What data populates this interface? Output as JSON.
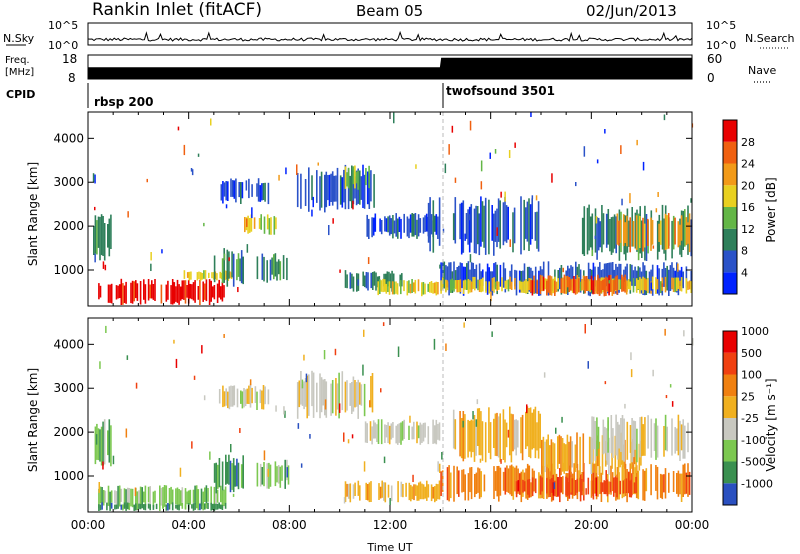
{
  "header": {
    "station": "Rankin Inlet (fitACF)",
    "beam": "Beam 05",
    "date": "02/Jun/2013"
  },
  "strips": {
    "nsky": {
      "label": "N.Sky",
      "top": "10^5",
      "bottom": "10^0"
    },
    "nsearch": {
      "label": "N.Search",
      "top": "10^5",
      "bottom": "10^0"
    },
    "freq": {
      "label_line1": "Freq.",
      "label_line2": "[MHz]",
      "top": "18",
      "bottom": "8"
    },
    "nave": {
      "label": "Nave",
      "top": "60",
      "bottom": "0"
    },
    "cpid": {
      "label": "CPID"
    }
  },
  "colors": {
    "power": [
      "#0022ff",
      "#2a52c8",
      "#2e7f5a",
      "#63b646",
      "#e8d020",
      "#f29a18",
      "#f06010",
      "#e80000"
    ],
    "velocity": [
      "#e80000",
      "#f04010",
      "#f08010",
      "#f0b020",
      "#c8c8c0",
      "#7cc850",
      "#3a9050",
      "#2a50c0"
    ]
  },
  "chart_data": [
    {
      "type": "line",
      "name": "N.Sky",
      "xlim": [
        0,
        24
      ],
      "scale": "log",
      "ylim": [
        1,
        100000
      ],
      "ylabel": "N.Sky",
      "y2label": "N.Search"
    },
    {
      "type": "line",
      "name": "Freq / Nave",
      "xlim": [
        0,
        24
      ],
      "ylim": [
        8,
        18
      ],
      "ylabel": "Freq. [MHz]",
      "y2lim": [
        0,
        60
      ],
      "y2label": "Nave",
      "freq_series": [
        {
          "x": 0,
          "y": 12.4
        },
        {
          "x": 14,
          "y": 12.4
        }
      ],
      "nave_series": [
        {
          "x": 0,
          "y": 28
        },
        {
          "x": 14,
          "y": 28
        },
        {
          "x": 14.05,
          "y": 52
        },
        {
          "x": 24,
          "y": 52
        }
      ]
    },
    {
      "type": "table",
      "name": "CPID",
      "ylabel": "CPID",
      "modes": [
        {
          "label": "rbsp 200",
          "start_hour": 0
        },
        {
          "label": "twofsound 3501",
          "start_hour": 14
        }
      ]
    },
    {
      "type": "heatmap",
      "name": "Power",
      "xlabel": "",
      "ylabel": "Slant Range [km]",
      "xlim": [
        0,
        24
      ],
      "ylim": [
        180,
        4600
      ],
      "y_ticks": [
        1000,
        2000,
        3000,
        4000
      ],
      "colorbar": {
        "label": "Power [dB]",
        "range": [
          0,
          32
        ],
        "ticks": [
          4,
          8,
          12,
          16,
          20,
          24,
          28
        ]
      },
      "regions": [
        {
          "t0": 0.2,
          "t1": 1.0,
          "r0": 1200,
          "r1": 2300,
          "c": 2
        },
        {
          "t0": 0.4,
          "t1": 5.5,
          "r0": 200,
          "r1": 800,
          "c": 7
        },
        {
          "t0": 3.8,
          "t1": 5.8,
          "r0": 750,
          "r1": 1000,
          "c": 4
        },
        {
          "t0": 5.0,
          "t1": 6.2,
          "r0": 600,
          "r1": 1500,
          "c": 2
        },
        {
          "t0": 5.2,
          "t1": 7.2,
          "r0": 2500,
          "r1": 3100,
          "c": 1
        },
        {
          "t0": 6.2,
          "t1": 7.5,
          "r0": 1800,
          "r1": 2300,
          "c": 4
        },
        {
          "t0": 6.7,
          "t1": 8.0,
          "r0": 700,
          "r1": 1400,
          "c": 2
        },
        {
          "t0": 8.3,
          "t1": 11.4,
          "r0": 2300,
          "r1": 3400,
          "c": 1
        },
        {
          "t0": 10.2,
          "t1": 11.2,
          "r0": 2800,
          "r1": 3400,
          "c": 3
        },
        {
          "t0": 11.0,
          "t1": 14.0,
          "r0": 1700,
          "r1": 2300,
          "c": 1
        },
        {
          "t0": 10.2,
          "t1": 12.5,
          "r0": 500,
          "r1": 1000,
          "c": 2
        },
        {
          "t0": 11.5,
          "t1": 14.0,
          "r0": 400,
          "r1": 800,
          "c": 4
        },
        {
          "t0": 13.5,
          "t1": 14.0,
          "r0": 1300,
          "r1": 2700,
          "c": 1
        },
        {
          "t0": 14.0,
          "t1": 24.0,
          "r0": 400,
          "r1": 1200,
          "c": 1
        },
        {
          "t0": 14.0,
          "t1": 24.0,
          "r0": 450,
          "r1": 850,
          "c": 4
        },
        {
          "t0": 17.5,
          "t1": 21.5,
          "r0": 400,
          "r1": 900,
          "c": 6
        },
        {
          "t0": 14.5,
          "t1": 18.0,
          "r0": 1300,
          "r1": 2700,
          "c": 1
        },
        {
          "t0": 19.5,
          "t1": 24.0,
          "r0": 1200,
          "r1": 2500,
          "c": 2
        },
        {
          "t0": 21.0,
          "t1": 24.0,
          "r0": 1400,
          "r1": 2300,
          "c": 5
        }
      ]
    },
    {
      "type": "heatmap",
      "name": "Velocity",
      "xlabel": "Time UT",
      "ylabel": "Slant Range [km]",
      "xlim": [
        0,
        24
      ],
      "ylim": [
        180,
        4600
      ],
      "y_ticks": [
        1000,
        2000,
        3000,
        4000
      ],
      "x_ticks": [
        "00:00",
        "04:00",
        "08:00",
        "12:00",
        "16:00",
        "20:00",
        "00:00"
      ],
      "colorbar": {
        "label": "Velocity [m s⁻¹]",
        "range": [
          -1000,
          1000
        ],
        "ticks": [
          "-1000",
          "-500",
          "-100",
          "-25",
          "25",
          "100",
          "500",
          "1000"
        ]
      },
      "regions": [
        {
          "t0": 0.2,
          "t1": 1.0,
          "r0": 1200,
          "r1": 2300,
          "c": 5
        },
        {
          "t0": 0.4,
          "t1": 5.5,
          "r0": 250,
          "r1": 800,
          "c": 5
        },
        {
          "t0": 0.4,
          "t1": 5.5,
          "r0": 200,
          "r1": 400,
          "c": 6
        },
        {
          "t0": 5.0,
          "t1": 6.2,
          "r0": 600,
          "r1": 1500,
          "c": 6
        },
        {
          "t0": 5.2,
          "t1": 7.2,
          "r0": 2500,
          "r1": 3100,
          "c": 4
        },
        {
          "t0": 6.7,
          "t1": 8.0,
          "r0": 700,
          "r1": 1400,
          "c": 5
        },
        {
          "t0": 8.3,
          "t1": 11.4,
          "r0": 2300,
          "r1": 3400,
          "c": 4
        },
        {
          "t0": 11.0,
          "t1": 14.0,
          "r0": 1700,
          "r1": 2300,
          "c": 4
        },
        {
          "t0": 10.2,
          "t1": 14.0,
          "r0": 400,
          "r1": 900,
          "c": 3
        },
        {
          "t0": 14.0,
          "t1": 24.0,
          "r0": 400,
          "r1": 1300,
          "c": 2
        },
        {
          "t0": 17.0,
          "t1": 22.0,
          "r0": 500,
          "r1": 1000,
          "c": 1
        },
        {
          "t0": 18.0,
          "t1": 22.0,
          "r0": 1000,
          "r1": 2000,
          "c": 3
        },
        {
          "t0": 20.0,
          "t1": 24.0,
          "r0": 1300,
          "r1": 2400,
          "c": 4
        },
        {
          "t0": 14.5,
          "t1": 18.0,
          "r0": 1300,
          "r1": 2600,
          "c": 3
        }
      ]
    }
  ]
}
